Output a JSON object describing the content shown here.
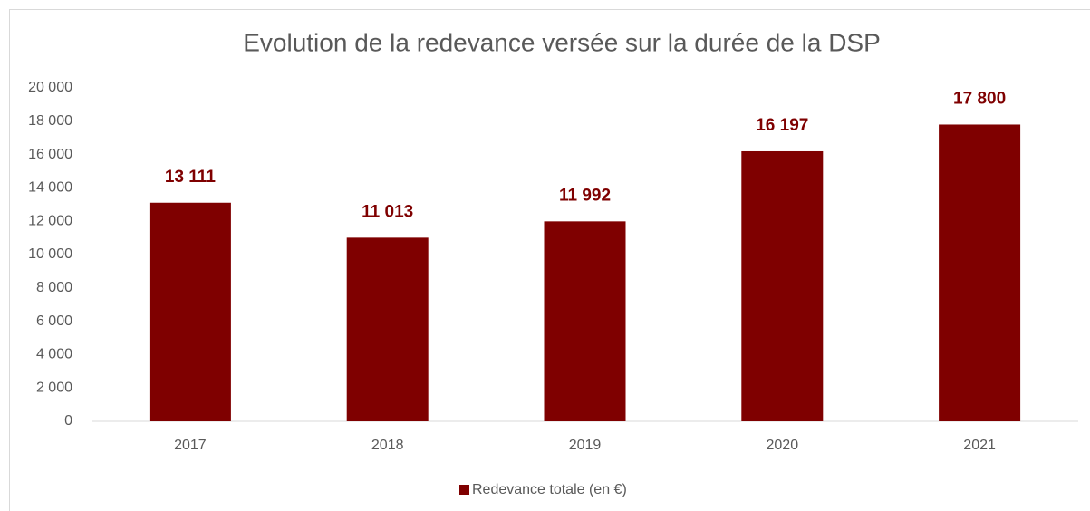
{
  "chart_data": {
    "type": "bar",
    "title": "Evolution de la redevance versée sur la durée de la DSP",
    "categories": [
      "2017",
      "2018",
      "2019",
      "2020",
      "2021"
    ],
    "series": [
      {
        "name": "Redevance totale (en €)",
        "color": "#7f0000",
        "values": [
          13111,
          11013,
          11992,
          16197,
          17800
        ],
        "value_labels": [
          "13 111",
          "11 013",
          "11 992",
          "16 197",
          "17 800"
        ]
      }
    ],
    "ylim": [
      0,
      20000
    ],
    "yticks": [
      {
        "value": 0,
        "label": "0"
      },
      {
        "value": 2000,
        "label": "2 000"
      },
      {
        "value": 4000,
        "label": "4 000"
      },
      {
        "value": 6000,
        "label": "6 000"
      },
      {
        "value": 8000,
        "label": "8 000"
      },
      {
        "value": 10000,
        "label": "10 000"
      },
      {
        "value": 12000,
        "label": "12 000"
      },
      {
        "value": 14000,
        "label": "14 000"
      },
      {
        "value": 16000,
        "label": "16 000"
      },
      {
        "value": 18000,
        "label": "18 000"
      },
      {
        "value": 20000,
        "label": "20 000"
      }
    ],
    "grid": false,
    "legend": "bottom"
  }
}
